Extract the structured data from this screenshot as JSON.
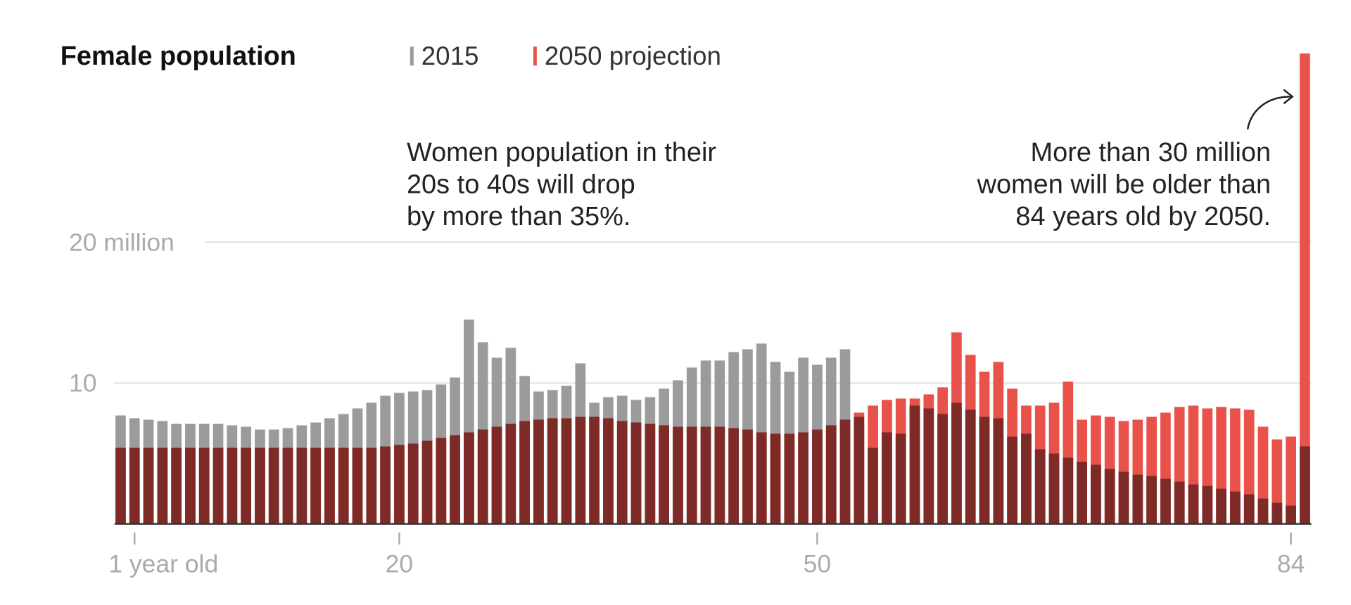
{
  "chart_data": {
    "type": "bar",
    "title": "Female population",
    "legend": [
      "2015",
      "2050 projection"
    ],
    "legend_placement": "top",
    "colors": {
      "2015": "#9b9b9b",
      "2050 projection": "#e8524b",
      "overlap": "#7e2b28"
    },
    "x": [
      0,
      1,
      2,
      3,
      4,
      5,
      6,
      7,
      8,
      9,
      10,
      11,
      12,
      13,
      14,
      15,
      16,
      17,
      18,
      19,
      20,
      21,
      22,
      23,
      24,
      25,
      26,
      27,
      28,
      29,
      30,
      31,
      32,
      33,
      34,
      35,
      36,
      37,
      38,
      39,
      40,
      41,
      42,
      43,
      44,
      45,
      46,
      47,
      48,
      49,
      50,
      51,
      52,
      53,
      54,
      55,
      56,
      57,
      58,
      59,
      60,
      61,
      62,
      63,
      64,
      65,
      66,
      67,
      68,
      69,
      70,
      71,
      72,
      73,
      74,
      75,
      76,
      77,
      78,
      79,
      80,
      81,
      82,
      83,
      84,
      85
    ],
    "series": [
      {
        "name": "2015",
        "values": [
          7.7,
          7.5,
          7.4,
          7.3,
          7.1,
          7.1,
          7.1,
          7.1,
          7.0,
          6.9,
          6.7,
          6.7,
          6.8,
          7.0,
          7.2,
          7.5,
          7.8,
          8.2,
          8.6,
          9.1,
          9.3,
          9.4,
          9.5,
          9.9,
          10.4,
          14.5,
          12.9,
          11.8,
          12.5,
          10.5,
          9.4,
          9.5,
          9.8,
          11.4,
          8.6,
          9.0,
          9.1,
          8.8,
          9.0,
          9.6,
          10.2,
          11.1,
          11.6,
          11.6,
          12.2,
          12.4,
          12.8,
          11.5,
          10.8,
          11.8,
          11.3,
          11.8,
          12.4,
          7.6,
          5.4,
          6.5,
          6.4,
          8.4,
          8.2,
          7.8,
          8.6,
          8.1,
          7.6,
          7.5,
          6.2,
          6.4,
          5.3,
          5.0,
          4.7,
          4.4,
          4.2,
          3.9,
          3.7,
          3.5,
          3.4,
          3.2,
          3.0,
          2.8,
          2.7,
          2.5,
          2.3,
          2.1,
          1.8,
          1.5,
          1.3,
          5.5
        ]
      },
      {
        "name": "2050 projection",
        "values": [
          5.4,
          5.4,
          5.4,
          5.4,
          5.4,
          5.4,
          5.4,
          5.4,
          5.4,
          5.4,
          5.4,
          5.4,
          5.4,
          5.4,
          5.4,
          5.4,
          5.4,
          5.4,
          5.4,
          5.5,
          5.6,
          5.7,
          5.9,
          6.1,
          6.3,
          6.5,
          6.7,
          6.9,
          7.1,
          7.3,
          7.4,
          7.5,
          7.5,
          7.6,
          7.6,
          7.5,
          7.3,
          7.2,
          7.1,
          7.0,
          6.9,
          6.9,
          6.9,
          6.9,
          6.8,
          6.7,
          6.5,
          6.4,
          6.4,
          6.5,
          6.7,
          7.0,
          7.4,
          7.9,
          8.4,
          8.8,
          8.9,
          8.9,
          9.2,
          9.7,
          13.6,
          12.0,
          10.8,
          11.5,
          9.6,
          8.4,
          8.4,
          8.6,
          10.1,
          7.4,
          7.7,
          7.6,
          7.3,
          7.4,
          7.6,
          7.9,
          8.3,
          8.4,
          8.2,
          8.3,
          8.2,
          8.1,
          6.9,
          6.0,
          6.2,
          33.4
        ]
      }
    ],
    "ylim": [
      0,
      34
    ],
    "yticks": [
      {
        "value": 10,
        "label": "10"
      },
      {
        "value": 20,
        "label": "20 million"
      }
    ],
    "xticks": [
      {
        "value": 1,
        "label": "1 year old"
      },
      {
        "value": 20,
        "label": "20"
      },
      {
        "value": 50,
        "label": "50"
      },
      {
        "value": 84,
        "label": "84"
      }
    ],
    "grid": true,
    "annotations": {
      "drop": [
        "Women population in their",
        "20s to 40s will drop",
        "by more than 35%."
      ],
      "older": [
        "More than 30 million",
        "women will be older than",
        "84 years old by 2050."
      ]
    }
  }
}
